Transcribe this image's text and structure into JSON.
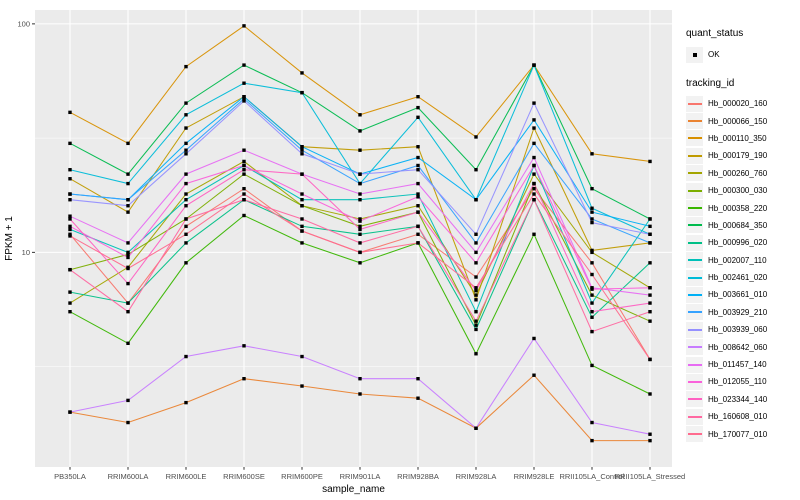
{
  "chart_data": {
    "type": "line",
    "title": "",
    "xlabel": "sample_name",
    "ylabel": "FPKM + 1",
    "y_scale": "log10",
    "ylim": [
      1.15,
      115
    ],
    "y_ticks": [
      10,
      100
    ],
    "y_minor_ticks": [
      3.1623,
      31.623
    ],
    "grid": true,
    "panel_bg": "#EBEBEB",
    "grid_color": "#FFFFFF",
    "tick_color": "#333333",
    "tick_label_color": "#4D4D4D",
    "point_color": "#000000",
    "legend_position": "right",
    "categories": [
      "PB350LA",
      "RRIM600LA",
      "RRIM600LE",
      "RRIM600SE",
      "RRIM600PE",
      "RRIM901LA",
      "RRIM928BA",
      "RRIM928LA",
      "RRIM928LE",
      "RRII105LA_Control",
      "RRII105LA_Stressed"
    ],
    "legend": {
      "quant_status_title": "quant_status",
      "quant_status_items": [
        {
          "label": "OK",
          "symbol": "point"
        }
      ],
      "tracking_id_title": "tracking_id"
    },
    "series": [
      {
        "name": "Hb_000020_160",
        "color": "#F8766D",
        "values": [
          12,
          6,
          13,
          19,
          12.4,
          10,
          12,
          7.8,
          19,
          9,
          3.4
        ]
      },
      {
        "name": "Hb_000066_150",
        "color": "#EA8331",
        "values": [
          2.0,
          1.8,
          2.2,
          2.8,
          2.6,
          2.4,
          2.3,
          1.7,
          2.9,
          1.5,
          1.5
        ]
      },
      {
        "name": "Hb_000110_350",
        "color": "#D89000",
        "values": [
          41,
          30,
          65,
          98,
          61,
          40,
          48,
          32,
          66,
          27,
          25
        ]
      },
      {
        "name": "Hb_000179_190",
        "color": "#C09B00",
        "values": [
          21,
          15,
          35,
          48,
          29,
          28,
          29,
          6.2,
          35,
          10.2,
          11
        ]
      },
      {
        "name": "Hb_000260_760",
        "color": "#A3A500",
        "values": [
          6.0,
          8.6,
          18,
          25,
          16,
          14,
          16,
          6.5,
          22,
          10,
          7
        ]
      },
      {
        "name": "Hb_000300_030",
        "color": "#7CAE00",
        "values": [
          8.4,
          9.8,
          14,
          22,
          16,
          13,
          15,
          4.8,
          20,
          6.5,
          5
        ]
      },
      {
        "name": "Hb_000358_220",
        "color": "#39B600",
        "values": [
          5.5,
          4.0,
          9,
          14.5,
          11,
          9,
          11,
          3.6,
          12,
          3.2,
          2.4
        ]
      },
      {
        "name": "Hb_000684_350",
        "color": "#00BB4E",
        "values": [
          30,
          22,
          45,
          66,
          50,
          34,
          43,
          23,
          66,
          19,
          14
        ]
      },
      {
        "name": "Hb_000996_020",
        "color": "#00C087",
        "values": [
          6.7,
          6.0,
          11,
          17,
          13,
          12,
          13,
          4.6,
          17,
          5.2,
          9
        ]
      },
      {
        "name": "Hb_002007_110",
        "color": "#00C0B8",
        "values": [
          12.6,
          10,
          17,
          24,
          17,
          17,
          18,
          5.5,
          24,
          6,
          14
        ]
      },
      {
        "name": "Hb_002461_020",
        "color": "#00BCD8",
        "values": [
          23,
          20,
          40,
          55,
          50,
          20,
          39,
          17,
          66,
          15.6,
          12
        ]
      },
      {
        "name": "Hb_003661_010",
        "color": "#00B0F6",
        "values": [
          18,
          17,
          30,
          48,
          29,
          22,
          26,
          17,
          38,
          15,
          13
        ]
      },
      {
        "name": "Hb_003929_210",
        "color": "#35A2FF",
        "values": [
          18,
          17,
          28,
          47,
          28,
          20,
          24,
          11,
          30,
          14,
          11
        ]
      },
      {
        "name": "Hb_003939_060",
        "color": "#9590FF",
        "values": [
          17,
          16,
          27,
          46,
          27,
          22,
          23,
          12,
          45,
          13.5,
          12
        ]
      },
      {
        "name": "Hb_008642_060",
        "color": "#C77CFF",
        "values": [
          2.0,
          2.25,
          3.5,
          3.9,
          3.5,
          2.8,
          2.8,
          1.7,
          4.2,
          1.8,
          1.6
        ]
      },
      {
        "name": "Hb_011457_140",
        "color": "#E76BF3",
        "values": [
          14.4,
          11,
          22,
          28,
          22,
          18,
          20,
          10,
          26,
          7,
          6.5
        ]
      },
      {
        "name": "Hb_012055_110",
        "color": "#FA62DB",
        "values": [
          13,
          9.5,
          20,
          24,
          18,
          13.7,
          17.5,
          9,
          24,
          6.9,
          7
        ]
      },
      {
        "name": "Hb_023344_140",
        "color": "#FF61C2",
        "values": [
          14,
          7.3,
          16,
          23,
          22,
          12.6,
          15,
          6.8,
          20,
          5.5,
          6
        ]
      },
      {
        "name": "Hb_160608_010",
        "color": "#FF68A1",
        "values": [
          8.4,
          5.5,
          14,
          17,
          14,
          11,
          13,
          5,
          17,
          4.5,
          5.5
        ]
      },
      {
        "name": "Hb_170077_010",
        "color": "#FF6B8E",
        "values": [
          11.8,
          8.5,
          12,
          18,
          12.4,
          10,
          11,
          7,
          18,
          8,
          3.4
        ]
      }
    ]
  }
}
